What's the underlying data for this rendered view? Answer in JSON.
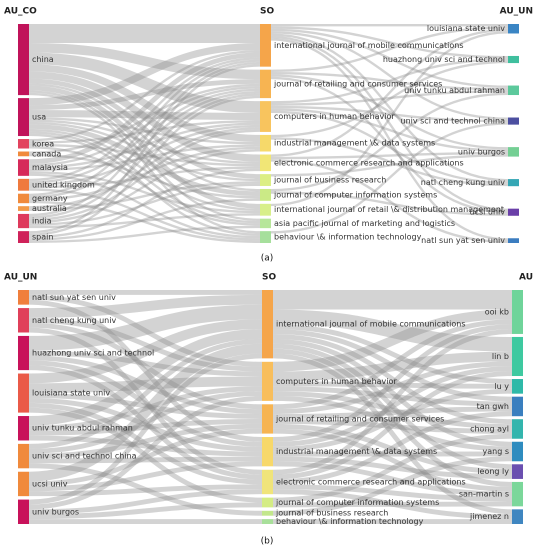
{
  "chart_data": [
    {
      "type": "sankey",
      "panel_label": "(a)",
      "columns": [
        {
          "title": "AU_CO",
          "nodes": [
            {
              "name": "china",
              "color": "#c0135a",
              "flows": [
                8,
                4,
                5,
                3,
                3,
                2,
                1,
                2,
                1,
                1
              ]
            },
            {
              "name": "usa",
              "color": "#c0135a",
              "flows": [
                3,
                2,
                3,
                1,
                1,
                1,
                2,
                1,
                1,
                1
              ]
            },
            {
              "name": "korea",
              "color": "#e2435e",
              "flows": [
                1,
                0,
                1,
                0,
                1,
                0,
                0,
                0,
                1,
                0
              ]
            },
            {
              "name": "canada",
              "color": "#f08a3c",
              "flows": [
                0,
                1,
                0,
                0,
                0,
                0,
                1,
                0,
                0,
                0
              ]
            },
            {
              "name": "malaysia",
              "color": "#d62a5a",
              "flows": [
                2,
                1,
                1,
                1,
                0,
                0,
                0,
                1,
                0,
                1
              ]
            },
            {
              "name": "united kingdom",
              "color": "#ef7a3e",
              "flows": [
                1,
                1,
                1,
                0,
                1,
                0,
                0,
                0,
                0,
                1
              ]
            },
            {
              "name": "germany",
              "color": "#f08a3c",
              "flows": [
                1,
                1,
                0,
                1,
                0,
                0,
                0,
                0,
                0,
                1
              ]
            },
            {
              "name": "australia",
              "color": "#f29a48",
              "flows": [
                0,
                0,
                1,
                0,
                0,
                1,
                0,
                0,
                0,
                0
              ]
            },
            {
              "name": "india",
              "color": "#de3a5c",
              "flows": [
                1,
                1,
                1,
                1,
                0,
                1,
                0,
                1,
                0,
                0
              ]
            },
            {
              "name": "spain",
              "color": "#cf225a",
              "flows": [
                1,
                1,
                0,
                0,
                1,
                0,
                1,
                0,
                1,
                0
              ]
            }
          ]
        },
        {
          "title": "SO",
          "nodes": [
            {
              "name": "international journal of mobile communications",
              "color": "#f5a54a",
              "flows": [
                1,
                1,
                1,
                1,
                0,
                1,
                1,
                1
              ]
            },
            {
              "name": "journal of retailing and consumer services",
              "color": "#f7b452",
              "flows": [
                1,
                0,
                1,
                0,
                1,
                0,
                1,
                0
              ]
            },
            {
              "name": "computers in human behavior",
              "color": "#f8c45e",
              "flows": [
                0,
                1,
                1,
                1,
                1,
                1,
                0,
                0
              ]
            },
            {
              "name": "industrial management \\& data systems",
              "color": "#f6d96a",
              "flows": [
                0,
                1,
                0,
                0,
                0,
                1,
                0,
                0
              ]
            },
            {
              "name": "electronic commerce research and applications",
              "color": "#f1e676",
              "flows": [
                1,
                0,
                0,
                0,
                1,
                0,
                0,
                1
              ]
            },
            {
              "name": "journal of business research",
              "color": "#dcee84",
              "flows": [
                0,
                0,
                0,
                0,
                1,
                0,
                0,
                0
              ]
            },
            {
              "name": "journal of computer information systems",
              "color": "#cbea86",
              "flows": [
                0,
                0,
                1,
                0,
                0,
                0,
                1,
                0
              ]
            },
            {
              "name": "international journal of retail \\& distribution management",
              "color": "#d8ef8a",
              "flows": [
                1,
                0,
                0,
                0,
                0,
                0,
                0,
                0
              ]
            },
            {
              "name": "asia pacific journal of marketing and logistics",
              "color": "#b7e69a",
              "flows": [
                0,
                0,
                0,
                0,
                0,
                0,
                0,
                0
              ]
            },
            {
              "name": "behaviour \\& information technology",
              "color": "#a6df9c",
              "flows": [
                0,
                0,
                0,
                1,
                0,
                0,
                0,
                0
              ]
            }
          ]
        },
        {
          "title": "AU_UN",
          "nodes": [
            {
              "name": "louisiana state univ",
              "color": "#3a85c4"
            },
            {
              "name": "huazhong univ sci and technol",
              "color": "#3fbf9e"
            },
            {
              "name": "univ tunku abdul rahman",
              "color": "#5cc99c"
            },
            {
              "name": "univ sci and technol china",
              "color": "#4c4fa0"
            },
            {
              "name": "univ burgos",
              "color": "#74cf94"
            },
            {
              "name": "natl cheng kung univ",
              "color": "#35a7b5"
            },
            {
              "name": "ucsi univ",
              "color": "#6a3fa8"
            },
            {
              "name": "natl sun yat sen univ",
              "color": "#3c7dc0"
            }
          ]
        }
      ]
    },
    {
      "type": "sankey",
      "panel_label": "(b)",
      "columns": [
        {
          "title": "AU_UN",
          "nodes": [
            {
              "name": "natl sun yat sen univ",
              "color": "#f07f3c",
              "flows": [
                1,
                1,
                0,
                1,
                0,
                0,
                0,
                0
              ]
            },
            {
              "name": "natl cheng kung univ",
              "color": "#e0405a",
              "flows": [
                2,
                1,
                1,
                0,
                1,
                0,
                0,
                0
              ]
            },
            {
              "name": "huazhong univ sci and technol",
              "color": "#c8125a",
              "flows": [
                3,
                1,
                1,
                1,
                1,
                0,
                0,
                0
              ]
            },
            {
              "name": "louisiana state univ",
              "color": "#ea5a48",
              "flows": [
                2,
                2,
                1,
                1,
                1,
                1,
                0,
                0
              ]
            },
            {
              "name": "univ tunku abdul rahman",
              "color": "#c8125a",
              "flows": [
                2,
                1,
                1,
                1,
                0,
                0,
                0,
                0
              ]
            },
            {
              "name": "univ sci and technol china",
              "color": "#f08a3c",
              "flows": [
                1,
                1,
                1,
                1,
                0,
                0,
                1,
                0
              ]
            },
            {
              "name": "ucsi univ",
              "color": "#f08a3c",
              "flows": [
                2,
                0,
                1,
                1,
                1,
                0,
                0,
                0
              ]
            },
            {
              "name": "univ burgos",
              "color": "#c8125a",
              "flows": [
                1,
                1,
                0,
                0,
                1,
                1,
                0,
                1
              ]
            }
          ]
        },
        {
          "title": "SO",
          "nodes": [
            {
              "name": "international journal of mobile communications",
              "color": "#f5a54a",
              "flows": [
                4,
                3,
                1,
                1,
                1,
                1,
                1,
                1,
                1
              ]
            },
            {
              "name": "computers in human behavior",
              "color": "#f8be5c",
              "flows": [
                2,
                2,
                1,
                1,
                1,
                1,
                0,
                0,
                0
              ]
            },
            {
              "name": "journal of retailing and consumer services",
              "color": "#f6b452",
              "flows": [
                1,
                1,
                0,
                1,
                1,
                0,
                1,
                1,
                0
              ]
            },
            {
              "name": "industrial management \\& data systems",
              "color": "#f7d86a",
              "flows": [
                1,
                1,
                1,
                0,
                0,
                1,
                1,
                1,
                0
              ]
            },
            {
              "name": "electronic commerce research and applications",
              "color": "#f0e47a",
              "flows": [
                1,
                1,
                0,
                1,
                0,
                0,
                0,
                1,
                1
              ]
            },
            {
              "name": "journal of computer information systems",
              "color": "#d4ec84",
              "flows": [
                0,
                0,
                0,
                0,
                1,
                0,
                0,
                1,
                0
              ]
            },
            {
              "name": "journal of business research",
              "color": "#c2e78c",
              "flows": [
                0,
                0,
                0,
                0,
                0,
                1,
                0,
                0,
                0
              ]
            },
            {
              "name": "behaviour \\& information technology",
              "color": "#a8df9a",
              "flows": [
                0,
                0,
                0,
                0,
                0,
                0,
                0,
                0,
                1
              ]
            }
          ]
        },
        {
          "title": "AU",
          "nodes": [
            {
              "name": "ooi kb",
              "color": "#6fd49a"
            },
            {
              "name": "lin b",
              "color": "#3ec9a0"
            },
            {
              "name": "lu y",
              "color": "#2fb9a8"
            },
            {
              "name": "tan gwh",
              "color": "#3a7fbf"
            },
            {
              "name": "chong ayl",
              "color": "#33b5ad"
            },
            {
              "name": "yang s",
              "color": "#2f8cbf"
            },
            {
              "name": "leong ly",
              "color": "#6a4fb0"
            },
            {
              "name": "san-martin s",
              "color": "#7bd79a"
            },
            {
              "name": "jimenez n",
              "color": "#3f86c0"
            }
          ]
        }
      ]
    }
  ]
}
